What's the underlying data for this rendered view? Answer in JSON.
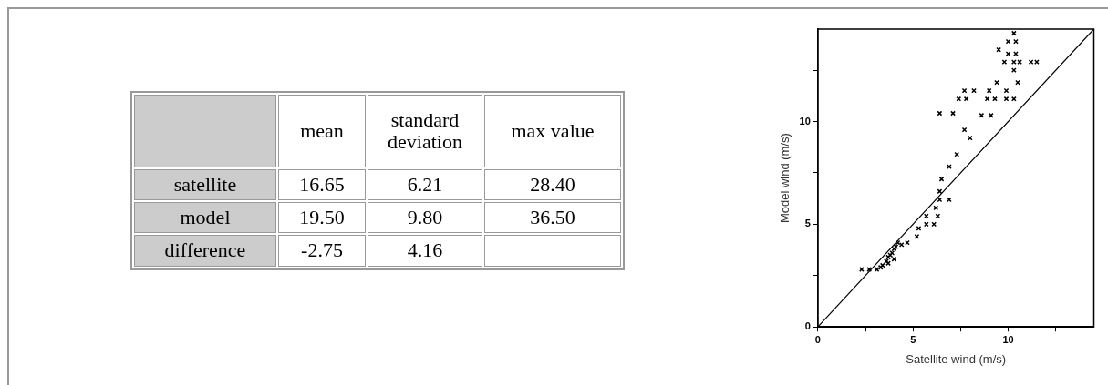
{
  "chart_data": [
    {
      "type": "other",
      "categories": [
        "mean",
        "standard deviation",
        "max value"
      ],
      "y_categories": [
        "satellite",
        "model",
        "difference"
      ],
      "cell_labels": [
        [
          "16.65",
          "6.21",
          "28.40"
        ],
        [
          "19.50",
          "9.80",
          "36.50"
        ],
        [
          "-2.75",
          "4.16",
          null
        ]
      ]
    },
    {
      "type": "scatter",
      "xlabel": "Satellite wind (m/s)",
      "ylabel": "Model wind (m/s)",
      "xlim": [
        0,
        14.5
      ],
      "ylim": [
        0,
        14.5
      ],
      "xticks": [
        0,
        {
          "value": 2.5,
          "label": null
        },
        5,
        {
          "value": 7.5,
          "label": null
        },
        10,
        {
          "value": 12.5,
          "label": null
        }
      ],
      "yticks": [
        0,
        {
          "value": 2.5,
          "label": null
        },
        5,
        {
          "value": 7.5,
          "label": null
        },
        10,
        {
          "value": 12.5,
          "label": null
        }
      ],
      "grid": false,
      "legend": false,
      "marker": "cross",
      "series": [
        {
          "type": "scatter",
          "color": "#000000",
          "x": [
            2.3,
            2.7,
            3.1,
            3.3,
            3.4,
            3.6,
            3.7,
            3.8,
            3.9,
            4.0,
            4.1,
            4.2,
            4.0,
            3.7,
            4.4,
            4.7,
            5.2,
            5.3,
            5.7,
            6.1,
            5.7,
            6.3,
            6.2,
            6.4,
            6.9,
            6.4,
            6.5,
            6.9,
            7.3,
            7.7,
            8.0,
            6.4,
            7.1,
            8.6,
            9.1,
            7.4,
            7.8,
            8.9,
            9.3,
            9.9,
            10.3,
            7.7,
            8.2,
            9.0,
            9.9,
            9.4,
            10.5,
            10.3,
            9.8,
            10.3,
            10.6,
            11.2,
            11.5,
            9.5,
            10.0,
            10.4,
            10.0,
            10.4,
            10.3
          ],
          "values": [
            2.8,
            2.8,
            2.8,
            2.9,
            3.0,
            3.2,
            3.4,
            3.5,
            3.6,
            3.8,
            3.9,
            4.1,
            3.3,
            3.1,
            4.0,
            4.1,
            4.4,
            4.8,
            5.0,
            5.0,
            5.4,
            5.4,
            5.8,
            6.2,
            6.2,
            6.6,
            7.2,
            7.8,
            8.4,
            9.6,
            9.2,
            10.4,
            10.4,
            10.3,
            10.3,
            11.1,
            11.1,
            11.1,
            11.1,
            11.1,
            11.1,
            11.5,
            11.5,
            11.5,
            11.5,
            11.9,
            11.9,
            12.5,
            12.9,
            12.9,
            12.9,
            12.9,
            12.9,
            13.5,
            13.3,
            13.3,
            13.9,
            13.9,
            14.3
          ]
        },
        {
          "type": "line",
          "color": "#000000",
          "marker": "none",
          "x": [
            0,
            14.5
          ],
          "values": [
            0,
            14.5
          ]
        }
      ]
    }
  ]
}
